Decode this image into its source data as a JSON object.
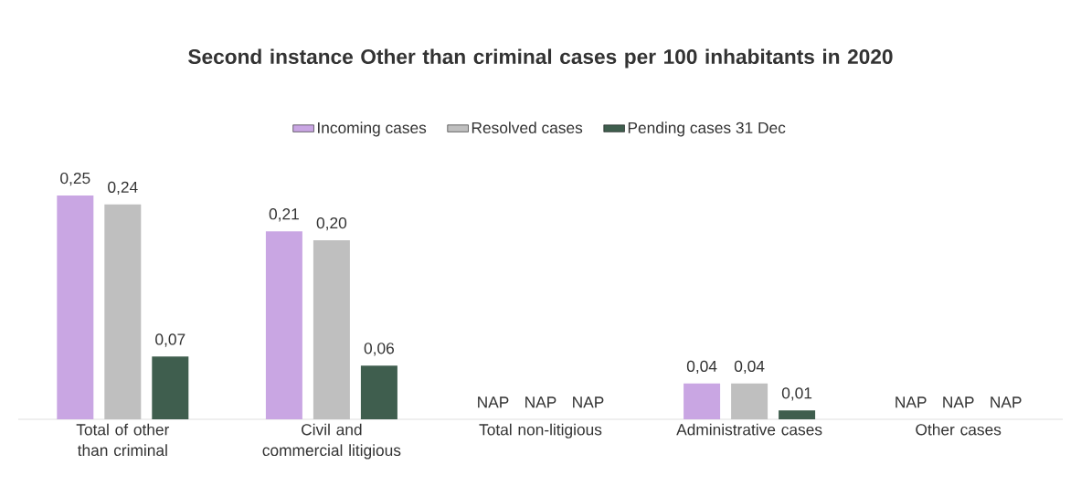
{
  "chart_data": {
    "type": "bar",
    "title": "Second instance Other than criminal cases per 100 inhabitants in 2020",
    "categories": [
      "Total of other than criminal",
      "Civil and commercial litigious",
      "Total non-litigious",
      "Administrative cases",
      "Other cases"
    ],
    "series": [
      {
        "name": "Incoming cases",
        "color": "#c9a6e3",
        "values": [
          0.25,
          0.21,
          null,
          0.04,
          null
        ],
        "value_labels": [
          "0,25",
          "0,21",
          "NAP",
          "0,04",
          "NAP"
        ]
      },
      {
        "name": "Resolved cases",
        "color": "#bfbfbf",
        "values": [
          0.24,
          0.2,
          null,
          0.04,
          null
        ],
        "value_labels": [
          "0,24",
          "0,20",
          "NAP",
          "0,04",
          "NAP"
        ]
      },
      {
        "name": "Pending cases 31 Dec",
        "color": "#3f5e4e",
        "values": [
          0.07,
          0.06,
          null,
          0.01,
          null
        ],
        "value_labels": [
          "0,07",
          "0,06",
          "NAP",
          "0,01",
          "NAP"
        ]
      }
    ],
    "legend": "top"
  }
}
